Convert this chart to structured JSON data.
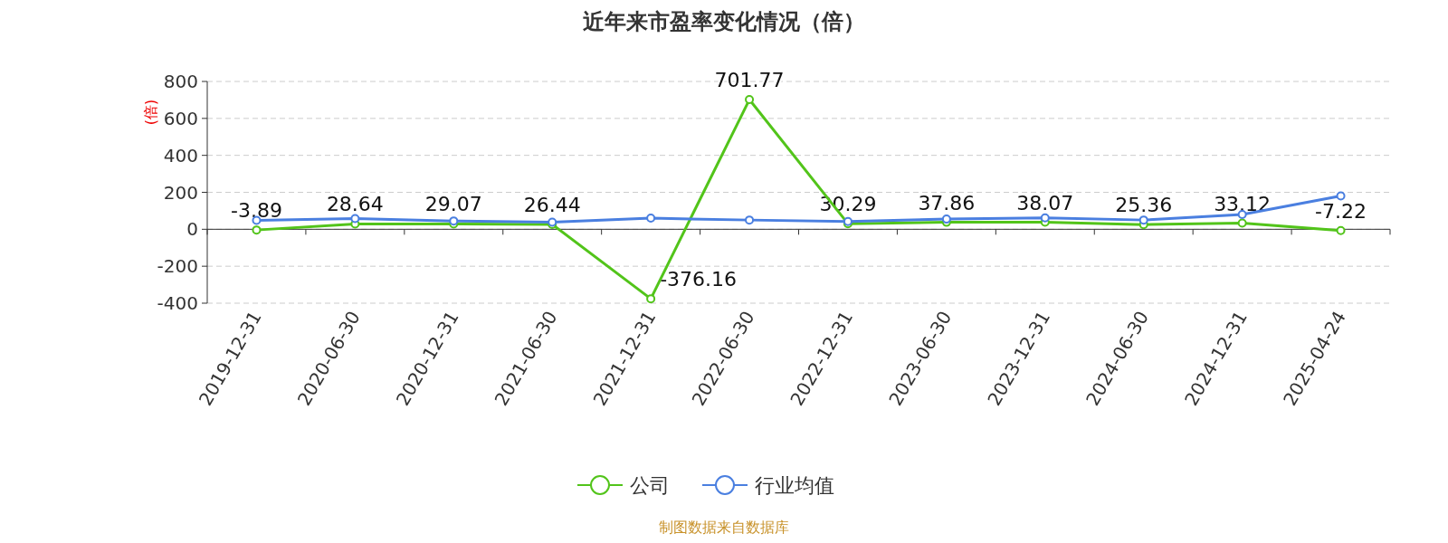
{
  "chart_data": {
    "type": "line",
    "title": "近年来市盈率变化情况（倍）",
    "ylabel": "(倍)",
    "categories": [
      "2019-12-31",
      "2020-06-30",
      "2020-12-31",
      "2021-06-30",
      "2021-12-31",
      "2022-06-30",
      "2022-12-31",
      "2023-06-30",
      "2023-12-31",
      "2024-06-30",
      "2024-12-31",
      "2025-04-24"
    ],
    "series": [
      {
        "name": "公司",
        "color": "#52c41a",
        "values": [
          -3.89,
          28.64,
          29.07,
          26.44,
          -376.16,
          701.77,
          30.29,
          37.86,
          38.07,
          25.36,
          33.12,
          -7.22
        ],
        "value_labels": [
          "-3.89",
          "28.64",
          "29.07",
          "26.44",
          "-376.16",
          "701.77",
          "30.29",
          "37.86",
          "38.07",
          "25.36",
          "33.12",
          "-7.22"
        ]
      },
      {
        "name": "行业均值",
        "color": "#4a7fe0",
        "values": [
          48,
          58,
          45,
          38,
          60,
          50,
          42,
          55,
          62,
          50,
          80,
          180
        ]
      }
    ],
    "ylim": [
      -400,
      800
    ],
    "yticks": [
      -400,
      -200,
      0,
      200,
      400,
      600,
      800
    ],
    "grid": "y",
    "legend": "bottom",
    "marker": "circle",
    "annotations": [
      "制图数据来自数据库"
    ]
  }
}
